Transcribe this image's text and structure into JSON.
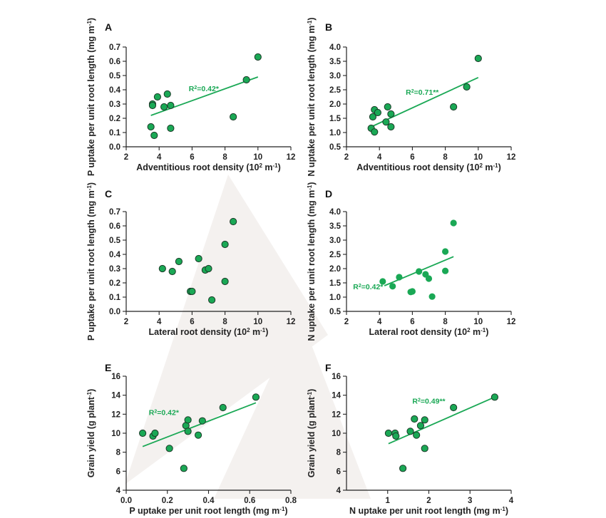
{
  "colors": {
    "accent": "#1aa855",
    "point_fill": "#1aa855",
    "point_stroke": "#1b3a28",
    "axis": "#222222",
    "watermark": "#f3f0ee"
  },
  "chart_data": [
    {
      "panel": "A",
      "type": "scatter",
      "xlabel": "Adventitious root density (10",
      "xlabel_sup": "2",
      "xlabel_unit": " m",
      "xlabel_unit_sup": "-1",
      "xlabel_close": ")",
      "ylabel": "P uptake per unit root length (mg m",
      "ylabel_sup": "-1",
      "ylabel_close": ")",
      "xlim": [
        2,
        12
      ],
      "ylim": [
        0,
        0.7
      ],
      "xticks": [
        "2",
        "4",
        "6",
        "8",
        "10",
        "12"
      ],
      "yticks": [
        "0.0",
        "0.1",
        "0.2",
        "0.3",
        "0.4",
        "0.5",
        "0.6",
        "0.7"
      ],
      "x": [
        3.5,
        3.6,
        3.7,
        3.9,
        3.6,
        4.3,
        4.5,
        4.7,
        4.7,
        8.5,
        9.3,
        10.0
      ],
      "y": [
        0.14,
        0.3,
        0.08,
        0.35,
        0.29,
        0.28,
        0.37,
        0.29,
        0.13,
        0.21,
        0.47,
        0.63
      ],
      "fit": [
        [
          3.5,
          0.22
        ],
        [
          10.0,
          0.49
        ]
      ],
      "r2_label": "R",
      "r2_sup": "2",
      "r2_value": "=0.42*",
      "r2_pos": [
        5.8,
        0.39
      ]
    },
    {
      "panel": "B",
      "type": "scatter",
      "xlabel": "Adventitious root density (10",
      "xlabel_sup": "2",
      "xlabel_unit": " m",
      "xlabel_unit_sup": "-1",
      "xlabel_close": ")",
      "ylabel": "N uptake per unit root length (mg m",
      "ylabel_sup": "-1",
      "ylabel_close": ")",
      "xlim": [
        2,
        12
      ],
      "ylim": [
        0.5,
        4.0
      ],
      "xticks": [
        "2",
        "4",
        "6",
        "8",
        "10",
        "12"
      ],
      "yticks": [
        "0.5",
        "1.0",
        "1.5",
        "2.0",
        "2.5",
        "3.0",
        "3.5",
        "4.0"
      ],
      "x": [
        3.5,
        3.6,
        3.7,
        3.7,
        3.9,
        4.4,
        4.5,
        4.7,
        4.7,
        8.5,
        9.3,
        10.0
      ],
      "y": [
        1.15,
        1.55,
        1.8,
        1.02,
        1.7,
        1.37,
        1.9,
        1.65,
        1.2,
        1.9,
        2.6,
        3.6
      ],
      "fit": [
        [
          3.5,
          1.2
        ],
        [
          10.0,
          2.93
        ]
      ],
      "r2_label": "R",
      "r2_sup": "2",
      "r2_value": "=0.71**",
      "r2_pos": [
        5.6,
        2.33
      ]
    },
    {
      "panel": "C",
      "type": "scatter",
      "xlabel": "Lateral root density (10",
      "xlabel_sup": "2",
      "xlabel_unit": " m",
      "xlabel_unit_sup": "-1",
      "xlabel_close": ")",
      "ylabel": "P uptake per unit root length (mg m",
      "ylabel_sup": "-1",
      "ylabel_close": ")",
      "xlim": [
        2,
        12
      ],
      "ylim": [
        0,
        0.7
      ],
      "xticks": [
        "2",
        "4",
        "6",
        "8",
        "10",
        "12"
      ],
      "yticks": [
        "0.0",
        "0.1",
        "0.2",
        "0.3",
        "0.4",
        "0.5",
        "0.6",
        "0.7"
      ],
      "x": [
        4.2,
        4.8,
        5.2,
        5.9,
        6.0,
        6.4,
        6.8,
        7.0,
        7.2,
        8.0,
        8.0,
        8.5
      ],
      "y": [
        0.3,
        0.28,
        0.35,
        0.14,
        0.14,
        0.37,
        0.29,
        0.3,
        0.08,
        0.21,
        0.47,
        0.63
      ],
      "fit": null,
      "r2_label": "",
      "r2_sup": "",
      "r2_value": "",
      "r2_pos": null
    },
    {
      "panel": "D",
      "type": "scatter",
      "xlabel": "Lateral root density (10",
      "xlabel_sup": "2",
      "xlabel_unit": " m",
      "xlabel_unit_sup": "-1",
      "xlabel_close": ")",
      "ylabel": "N uptake per unit root length (mg m",
      "ylabel_sup": "-1",
      "ylabel_close": ")",
      "xlim": [
        2,
        12
      ],
      "ylim": [
        0.5,
        4.0
      ],
      "xticks": [
        "2",
        "4",
        "6",
        "8",
        "10",
        "12"
      ],
      "yticks": [
        "0.5",
        "1.0",
        "1.5",
        "2.0",
        "2.5",
        "3.0",
        "3.5",
        "4.0"
      ],
      "x": [
        4.2,
        4.8,
        5.2,
        5.9,
        6.0,
        6.4,
        6.8,
        7.0,
        7.2,
        8.0,
        8.0,
        8.5
      ],
      "y": [
        1.55,
        1.38,
        1.7,
        1.18,
        1.2,
        1.9,
        1.8,
        1.65,
        1.02,
        1.92,
        2.6,
        3.6
      ],
      "fit": [
        [
          4.3,
          1.4
        ],
        [
          8.5,
          2.42
        ]
      ],
      "r2_label": "R",
      "r2_sup": "2",
      "r2_value": "=0.42*",
      "r2_pos": [
        2.4,
        1.28
      ]
    },
    {
      "panel": "E",
      "type": "scatter",
      "xlabel": "P uptake per unit root length (mg m",
      "xlabel_sup": "",
      "xlabel_unit": "",
      "xlabel_unit_sup": "-1",
      "xlabel_close": ")",
      "ylabel": "Grain yield (g plant",
      "ylabel_sup": "-1",
      "ylabel_close": ")",
      "xlim": [
        0,
        0.8
      ],
      "ylim": [
        4,
        16
      ],
      "xticks": [
        "0.0",
        "0.2",
        "0.4",
        "0.6",
        "0.8"
      ],
      "yticks": [
        "4",
        "6",
        "8",
        "10",
        "12",
        "14",
        "16"
      ],
      "x": [
        0.08,
        0.13,
        0.14,
        0.21,
        0.28,
        0.29,
        0.3,
        0.3,
        0.35,
        0.37,
        0.47,
        0.63
      ],
      "y": [
        10.0,
        9.7,
        10.0,
        8.4,
        6.3,
        10.8,
        10.2,
        11.4,
        9.8,
        11.3,
        12.7,
        13.8
      ],
      "fit": [
        [
          0.08,
          8.6
        ],
        [
          0.63,
          13.2
        ]
      ],
      "r2_label": "R",
      "r2_sup": "2",
      "r2_value": "=0.42*",
      "r2_pos": [
        0.11,
        11.9
      ]
    },
    {
      "panel": "F",
      "type": "scatter",
      "xlabel": "N uptake per unit root length (mg m",
      "xlabel_sup": "",
      "xlabel_unit": "",
      "xlabel_unit_sup": "-1",
      "xlabel_close": ")",
      "ylabel": "Grain yield (g plant",
      "ylabel_sup": "-1",
      "ylabel_close": ")",
      "xlim": [
        0,
        4
      ],
      "ylim": [
        4,
        16
      ],
      "xticks": [
        "1",
        "2",
        "3",
        "4"
      ],
      "yticks": [
        "4",
        "6",
        "8",
        "10",
        "12",
        "14",
        "16"
      ],
      "x": [
        1.02,
        1.18,
        1.2,
        1.37,
        1.55,
        1.65,
        1.7,
        1.8,
        1.9,
        1.9,
        2.6,
        3.6
      ],
      "y": [
        10.0,
        10.0,
        9.7,
        6.3,
        10.2,
        11.5,
        9.8,
        10.8,
        11.4,
        8.4,
        12.7,
        13.8
      ],
      "fit": [
        [
          1.02,
          8.9
        ],
        [
          3.6,
          13.8
        ]
      ],
      "r2_label": "R",
      "r2_sup": "2",
      "r2_value": "=0.49**",
      "r2_pos": [
        1.6,
        13.1
      ]
    }
  ]
}
